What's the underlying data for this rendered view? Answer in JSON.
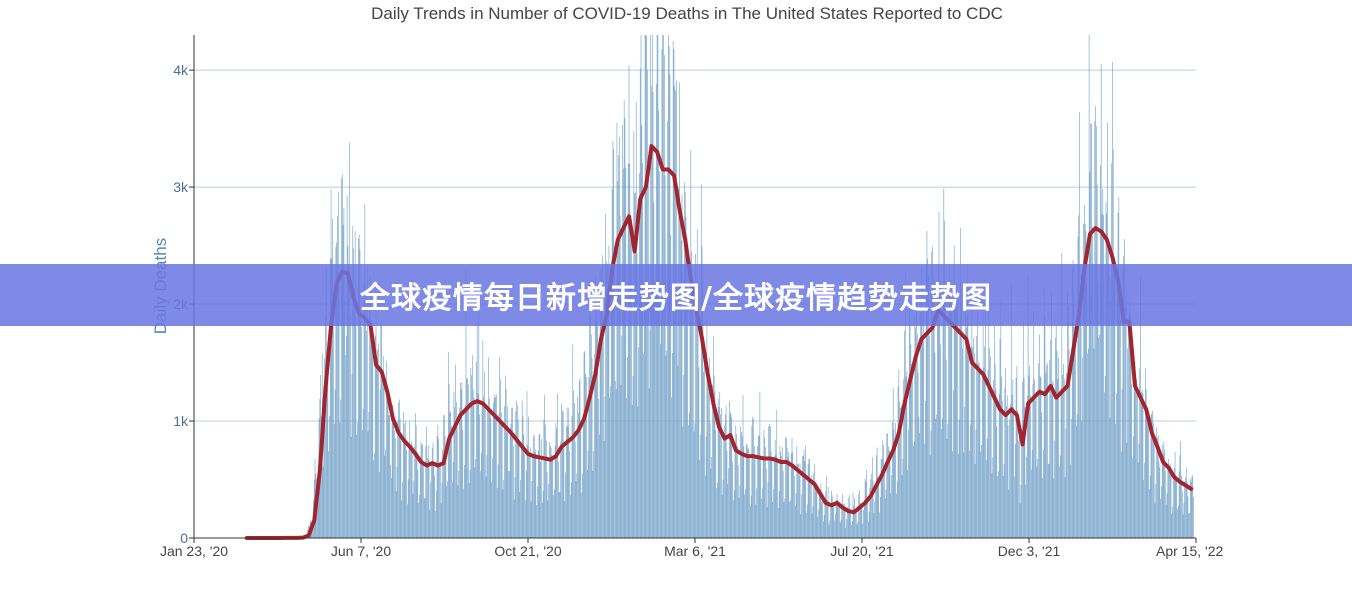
{
  "banner": {
    "text": "全球疫情每日新增走势图/全球疫情趋势走势图"
  },
  "chart_data": {
    "type": "bar",
    "title": "Daily Trends in Number of COVID-19 Deaths in The United States Reported to CDC",
    "xlabel": "",
    "ylabel": "Daily Deaths",
    "x_tick_labels": [
      "Jan 23, '20",
      "Jun 7, '20",
      "Oct 21, '20",
      "Mar 6, '21",
      "Jul 20, '21",
      "Dec 3, '21",
      "Apr 15, '22"
    ],
    "y_tick_labels": [
      "0",
      "1k",
      "2k",
      "3k",
      "4k"
    ],
    "ylim": [
      0,
      4300
    ],
    "grid": true,
    "legend": "none",
    "colors": {
      "bars": "#7aa6cb",
      "bar_edge": "#5f8fb8",
      "line": "#a3242d",
      "grid": "#b8cde0",
      "axis_text": "#4a6f94"
    },
    "weekly_total_deaths": [
      0,
      0,
      0,
      0,
      0,
      0,
      0,
      1,
      1,
      1,
      3,
      21,
      150,
      580,
      1280,
      1820,
      2180,
      2280,
      2260,
      2050,
      1920,
      1880,
      1820,
      1480,
      1420,
      1250,
      1020,
      900,
      830,
      780,
      720,
      650,
      620,
      640,
      620,
      640,
      850,
      950,
      1050,
      1100,
      1150,
      1170,
      1150,
      1100,
      1050,
      1000,
      950,
      900,
      840,
      780,
      720,
      700,
      690,
      680,
      670,
      700,
      780,
      820,
      860,
      920,
      1020,
      1200,
      1400,
      1700,
      1900,
      2300,
      2550,
      2650,
      2750,
      2450,
      2900,
      3000,
      3350,
      3300,
      3150,
      3150,
      3100,
      2800,
      2550,
      2200,
      1950,
      1700,
      1400,
      1150,
      950,
      850,
      880,
      750,
      720,
      700,
      700,
      690,
      680,
      680,
      670,
      650,
      650,
      620,
      580,
      540,
      500,
      460,
      380,
      300,
      280,
      300,
      260,
      230,
      220,
      260,
      300,
      360,
      450,
      540,
      650,
      750,
      900,
      1150,
      1350,
      1550,
      1700,
      1750,
      1800,
      1950,
      1900,
      1850,
      1800,
      1750,
      1700,
      1500,
      1450,
      1400,
      1300,
      1200,
      1100,
      1050,
      1100,
      1050,
      800,
      1150,
      1200,
      1250,
      1230,
      1300,
      1200,
      1250,
      1300,
      1600,
      1900,
      2300,
      2600,
      2650,
      2620,
      2550,
      2400,
      2200,
      1850,
      1850,
      1300,
      1200,
      1100,
      900,
      780,
      650,
      600,
      520,
      480,
      450,
      420
    ]
  }
}
